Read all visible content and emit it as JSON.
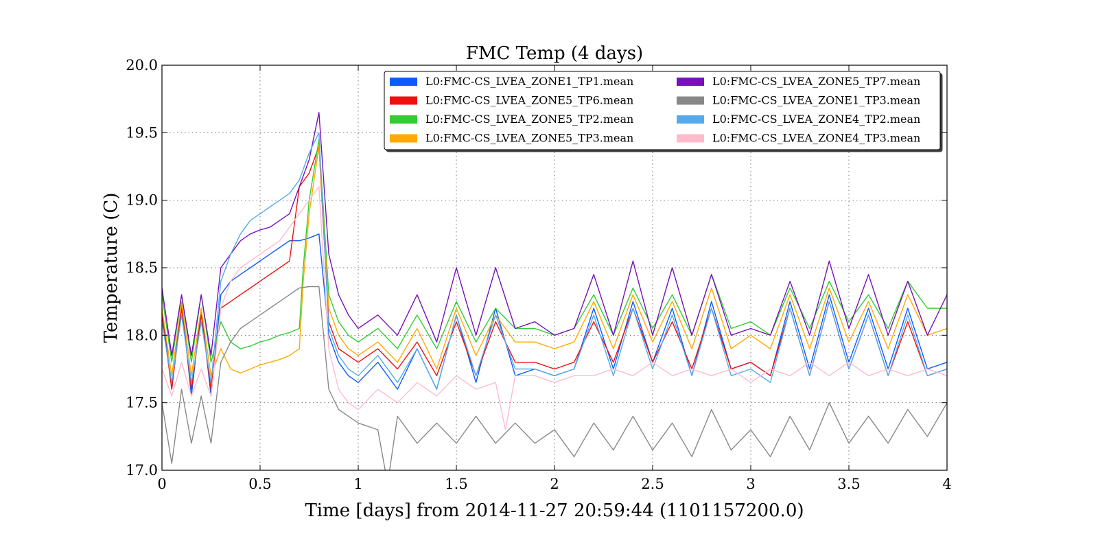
{
  "chart_data": {
    "type": "line",
    "title": "FMC Temp (4 days)",
    "xlabel": "Time [days] from 2014-11-27 20:59:44 (1101157200.0)",
    "ylabel": "Temperature (C)",
    "xlim": [
      0,
      4
    ],
    "ylim": [
      17.0,
      20.0
    ],
    "x_ticks": [
      0,
      0.5,
      1,
      1.5,
      2,
      2.5,
      3,
      3.5,
      4
    ],
    "x_tick_labels": [
      "0",
      "0.5",
      "1",
      "1.5",
      "2",
      "2.5",
      "3",
      "3.5",
      "4"
    ],
    "y_ticks": [
      17.0,
      17.5,
      18.0,
      18.5,
      19.0,
      19.5,
      20.0
    ],
    "y_tick_labels": [
      "17.0",
      "17.5",
      "18.0",
      "18.5",
      "19.0",
      "19.5",
      "20.0"
    ],
    "grid": true,
    "legend_position": "top-right",
    "series": [
      {
        "name": "L0:FMC-CS_LVEA_ZONE1_TP1.mean",
        "color": "#0a5cff",
        "x": [
          0,
          0.05,
          0.1,
          0.15,
          0.2,
          0.25,
          0.3,
          0.35,
          0.4,
          0.45,
          0.5,
          0.55,
          0.6,
          0.65,
          0.7,
          0.75,
          0.8,
          0.85,
          0.9,
          0.95,
          1,
          1.1,
          1.2,
          1.3,
          1.4,
          1.5,
          1.6,
          1.7,
          1.8,
          1.9,
          2,
          2.1,
          2.2,
          2.3,
          2.4,
          2.5,
          2.6,
          2.7,
          2.8,
          2.9,
          3,
          3.1,
          3.2,
          3.3,
          3.4,
          3.5,
          3.6,
          3.7,
          3.8,
          3.9,
          4
        ],
        "y": [
          18.2,
          17.6,
          18.25,
          17.55,
          18.2,
          17.55,
          18.3,
          18.4,
          18.45,
          18.5,
          18.55,
          18.6,
          18.65,
          18.7,
          18.7,
          18.72,
          18.75,
          18.0,
          17.8,
          17.7,
          17.65,
          17.8,
          17.6,
          17.9,
          17.6,
          18.15,
          17.65,
          18.2,
          17.7,
          17.75,
          17.7,
          17.75,
          18.2,
          17.75,
          18.25,
          17.8,
          18.2,
          17.7,
          18.25,
          17.75,
          17.8,
          17.7,
          18.25,
          17.75,
          18.3,
          17.8,
          18.2,
          17.75,
          18.2,
          17.75,
          17.8
        ]
      },
      {
        "name": "L0:FMC-CS_LVEA_ZONE5_TP6.mean",
        "color": "#ee1111",
        "x": [
          0,
          0.05,
          0.1,
          0.15,
          0.2,
          0.25,
          0.3,
          0.35,
          0.4,
          0.45,
          0.5,
          0.55,
          0.6,
          0.65,
          0.7,
          0.75,
          0.8,
          0.85,
          0.9,
          0.95,
          1,
          1.1,
          1.2,
          1.3,
          1.4,
          1.5,
          1.6,
          1.7,
          1.8,
          1.9,
          2,
          2.1,
          2.2,
          2.3,
          2.4,
          2.5,
          2.6,
          2.7,
          2.8,
          2.9,
          3,
          3.1,
          3.2,
          3.3,
          3.4,
          3.5,
          3.6,
          3.7,
          3.8,
          3.9,
          4
        ],
        "y": [
          18.15,
          17.6,
          18.2,
          17.6,
          18.15,
          17.6,
          18.2,
          18.25,
          18.3,
          18.35,
          18.4,
          18.45,
          18.5,
          18.55,
          19.1,
          19.2,
          19.4,
          18.1,
          17.9,
          17.85,
          17.8,
          17.9,
          17.75,
          17.95,
          17.7,
          18.1,
          17.7,
          18.1,
          17.8,
          17.8,
          17.75,
          17.8,
          18.1,
          17.8,
          18.2,
          17.8,
          18.1,
          17.75,
          18.2,
          17.75,
          17.8,
          17.7,
          18.2,
          17.7,
          18.25,
          17.75,
          18.15,
          17.7,
          18.1,
          17.7,
          17.75
        ]
      },
      {
        "name": "L0:FMC-CS_LVEA_ZONE5_TP2.mean",
        "color": "#33cc33",
        "x": [
          0,
          0.05,
          0.1,
          0.15,
          0.2,
          0.25,
          0.3,
          0.35,
          0.4,
          0.45,
          0.5,
          0.55,
          0.6,
          0.65,
          0.7,
          0.72,
          0.75,
          0.8,
          0.85,
          0.9,
          0.95,
          1,
          1.1,
          1.2,
          1.3,
          1.4,
          1.5,
          1.6,
          1.7,
          1.8,
          1.9,
          2,
          2.1,
          2.2,
          2.3,
          2.4,
          2.5,
          2.6,
          2.7,
          2.8,
          2.9,
          3,
          3.1,
          3.2,
          3.3,
          3.4,
          3.5,
          3.6,
          3.7,
          3.8,
          3.9,
          4
        ],
        "y": [
          18.3,
          17.8,
          18.3,
          17.8,
          18.3,
          17.8,
          18.1,
          17.95,
          17.9,
          17.92,
          17.95,
          17.97,
          18.0,
          18.02,
          18.05,
          18.5,
          19.0,
          19.45,
          18.3,
          18.1,
          18.0,
          17.95,
          18.05,
          17.9,
          18.15,
          17.9,
          18.25,
          17.95,
          18.2,
          18.05,
          18.05,
          18.0,
          18.05,
          18.3,
          18.0,
          18.35,
          18.05,
          18.3,
          18.0,
          18.45,
          18.05,
          18.1,
          18.0,
          18.35,
          18.05,
          18.4,
          18.1,
          18.3,
          18.05,
          18.4,
          18.2,
          18.2
        ]
      },
      {
        "name": "L0:FMC-CS_LVEA_ZONE5_TP3.mean",
        "color": "#ffaa00",
        "x": [
          0,
          0.05,
          0.1,
          0.15,
          0.2,
          0.25,
          0.3,
          0.35,
          0.4,
          0.45,
          0.5,
          0.55,
          0.6,
          0.65,
          0.7,
          0.72,
          0.75,
          0.8,
          0.85,
          0.9,
          0.95,
          1,
          1.1,
          1.2,
          1.3,
          1.4,
          1.5,
          1.6,
          1.7,
          1.8,
          1.9,
          2,
          2.1,
          2.2,
          2.3,
          2.4,
          2.5,
          2.6,
          2.7,
          2.8,
          2.9,
          3,
          3.1,
          3.2,
          3.3,
          3.4,
          3.5,
          3.6,
          3.7,
          3.8,
          3.9,
          4
        ],
        "y": [
          18.2,
          17.7,
          18.25,
          17.7,
          18.2,
          17.7,
          17.9,
          17.75,
          17.72,
          17.75,
          17.78,
          17.8,
          17.82,
          17.85,
          17.9,
          18.4,
          18.9,
          19.4,
          18.2,
          18.0,
          17.9,
          17.85,
          17.95,
          17.8,
          18.05,
          17.75,
          18.2,
          17.85,
          18.15,
          17.95,
          17.95,
          17.9,
          17.95,
          18.25,
          17.9,
          18.3,
          17.95,
          18.25,
          17.9,
          18.35,
          17.9,
          18.0,
          17.9,
          18.3,
          17.9,
          18.35,
          17.95,
          18.25,
          17.9,
          18.3,
          18.0,
          18.05
        ]
      },
      {
        "name": "L0:FMC-CS_LVEA_ZONE5_TP7.mean",
        "color": "#7711bb",
        "x": [
          0,
          0.05,
          0.1,
          0.15,
          0.2,
          0.25,
          0.3,
          0.35,
          0.4,
          0.45,
          0.5,
          0.55,
          0.6,
          0.65,
          0.7,
          0.75,
          0.8,
          0.85,
          0.9,
          0.95,
          1,
          1.1,
          1.2,
          1.3,
          1.4,
          1.5,
          1.6,
          1.7,
          1.8,
          1.9,
          2,
          2.1,
          2.2,
          2.3,
          2.4,
          2.5,
          2.6,
          2.7,
          2.8,
          2.9,
          3,
          3.1,
          3.2,
          3.3,
          3.4,
          3.5,
          3.6,
          3.7,
          3.8,
          3.9,
          4
        ],
        "y": [
          18.35,
          17.85,
          18.3,
          17.85,
          18.3,
          17.85,
          18.5,
          18.6,
          18.7,
          18.75,
          18.78,
          18.8,
          18.85,
          18.9,
          19.1,
          19.3,
          19.65,
          18.6,
          18.3,
          18.15,
          18.05,
          18.15,
          18.0,
          18.3,
          17.95,
          18.5,
          18.0,
          18.5,
          18.05,
          18.1,
          18.0,
          18.05,
          18.45,
          18.0,
          18.55,
          18.0,
          18.5,
          18.0,
          18.45,
          18.0,
          18.05,
          18.0,
          18.4,
          18.0,
          18.55,
          18.05,
          18.45,
          18.0,
          18.4,
          18.0,
          18.3
        ]
      },
      {
        "name": "L0:FMC-CS_LVEA_ZONE1_TP3.mean",
        "color": "#888888",
        "x": [
          0,
          0.05,
          0.1,
          0.15,
          0.2,
          0.25,
          0.3,
          0.35,
          0.4,
          0.45,
          0.5,
          0.55,
          0.6,
          0.65,
          0.7,
          0.75,
          0.8,
          0.85,
          0.9,
          0.95,
          1,
          1.1,
          1.15,
          1.2,
          1.3,
          1.4,
          1.5,
          1.6,
          1.7,
          1.8,
          1.9,
          2,
          2.1,
          2.2,
          2.3,
          2.4,
          2.5,
          2.6,
          2.7,
          2.8,
          2.9,
          3,
          3.1,
          3.2,
          3.3,
          3.4,
          3.5,
          3.6,
          3.7,
          3.8,
          3.9,
          4
        ],
        "y": [
          17.5,
          17.05,
          17.6,
          17.2,
          17.55,
          17.2,
          17.8,
          17.95,
          18.05,
          18.1,
          18.15,
          18.2,
          18.25,
          18.3,
          18.35,
          18.36,
          18.36,
          17.6,
          17.45,
          17.4,
          17.35,
          17.3,
          16.9,
          17.4,
          17.2,
          17.35,
          17.2,
          17.4,
          17.2,
          17.35,
          17.2,
          17.3,
          17.1,
          17.35,
          17.15,
          17.4,
          17.15,
          17.35,
          17.1,
          17.45,
          17.15,
          17.3,
          17.1,
          17.4,
          17.15,
          17.5,
          17.2,
          17.4,
          17.2,
          17.45,
          17.25,
          17.5
        ]
      },
      {
        "name": "L0:FMC-CS_LVEA_ZONE4_TP2.mean",
        "color": "#55aaee",
        "x": [
          0,
          0.05,
          0.1,
          0.15,
          0.2,
          0.25,
          0.3,
          0.35,
          0.4,
          0.45,
          0.5,
          0.55,
          0.6,
          0.65,
          0.7,
          0.75,
          0.8,
          0.85,
          0.9,
          0.95,
          1,
          1.1,
          1.2,
          1.3,
          1.4,
          1.5,
          1.6,
          1.7,
          1.8,
          1.9,
          2,
          2.1,
          2.2,
          2.3,
          2.4,
          2.5,
          2.6,
          2.7,
          2.8,
          2.9,
          3,
          3.1,
          3.2,
          3.3,
          3.4,
          3.5,
          3.6,
          3.7,
          3.8,
          3.9,
          4
        ],
        "y": [
          18.1,
          17.65,
          18.15,
          17.65,
          18.1,
          17.65,
          18.4,
          18.6,
          18.75,
          18.85,
          18.9,
          18.95,
          19.0,
          19.05,
          19.15,
          19.35,
          19.5,
          18.05,
          17.85,
          17.75,
          17.7,
          17.85,
          17.65,
          17.9,
          17.6,
          18.15,
          17.7,
          18.15,
          17.75,
          17.75,
          17.7,
          17.75,
          18.15,
          17.7,
          18.2,
          17.75,
          18.15,
          17.7,
          18.2,
          17.7,
          17.75,
          17.65,
          18.2,
          17.7,
          18.25,
          17.75,
          18.15,
          17.7,
          18.15,
          17.7,
          17.75
        ]
      },
      {
        "name": "L0:FMC-CS_LVEA_ZONE4_TP3.mean",
        "color": "#ffbbcc",
        "x": [
          0,
          0.05,
          0.1,
          0.15,
          0.2,
          0.25,
          0.3,
          0.35,
          0.4,
          0.45,
          0.5,
          0.55,
          0.6,
          0.65,
          0.7,
          0.75,
          0.8,
          0.85,
          0.9,
          0.95,
          1,
          1.1,
          1.2,
          1.3,
          1.4,
          1.5,
          1.6,
          1.7,
          1.75,
          1.8,
          1.9,
          2,
          2.1,
          2.2,
          2.3,
          2.4,
          2.5,
          2.6,
          2.7,
          2.8,
          2.9,
          3,
          3.1,
          3.2,
          3.3,
          3.4,
          3.5,
          3.6,
          3.7,
          3.8,
          3.9,
          4
        ],
        "y": [
          17.75,
          17.55,
          17.8,
          17.55,
          17.75,
          17.55,
          18.2,
          18.4,
          18.5,
          18.55,
          18.6,
          18.65,
          18.7,
          18.8,
          18.9,
          19.0,
          19.1,
          17.9,
          17.6,
          17.5,
          17.45,
          17.6,
          17.5,
          17.65,
          17.55,
          17.7,
          17.6,
          17.65,
          17.3,
          17.7,
          17.7,
          17.65,
          17.7,
          17.7,
          17.75,
          17.7,
          17.8,
          17.7,
          17.75,
          17.7,
          17.75,
          17.65,
          17.75,
          17.7,
          17.8,
          17.7,
          17.8,
          17.7,
          17.75,
          17.7,
          17.75,
          17.7
        ]
      }
    ]
  }
}
